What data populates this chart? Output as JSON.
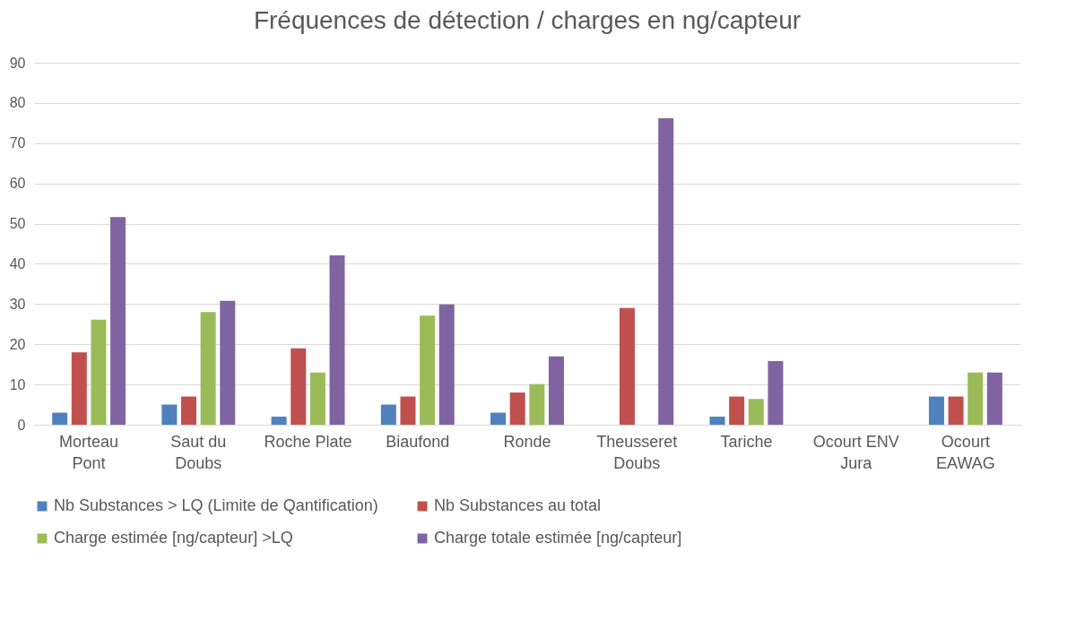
{
  "chart_data": {
    "type": "bar",
    "title": "Fréquences de détection / charges en ng/capteur",
    "categories": [
      "Morteau Pont",
      "Saut du Doubs",
      "Roche Plate",
      "Biaufond",
      "Ronde",
      "Theusseret Doubs",
      "Tariche",
      "Ocourt  ENV Jura",
      "Ocourt EAWAG"
    ],
    "series": [
      {
        "name": "Nb Substances > LQ (Limite de Qantification)",
        "color": "#4f81bd",
        "values": [
          3,
          5,
          2,
          5,
          3,
          null,
          2,
          null,
          7
        ]
      },
      {
        "name": "Nb Substances au total",
        "color": "#c0504d",
        "values": [
          18,
          7,
          19,
          7,
          8,
          29,
          7,
          null,
          7
        ]
      },
      {
        "name": "Charge estimée [ng/capteur] >LQ",
        "color": "#9bbb59",
        "values": [
          26.1,
          28,
          13,
          27.1,
          10.1,
          null,
          6.4,
          null,
          13
        ]
      },
      {
        "name": "Charge totale estimée [ng/capteur]",
        "color": "#8064a2",
        "values": [
          51.6,
          30.8,
          42.1,
          29.9,
          17,
          76.2,
          15.8,
          null,
          13
        ]
      }
    ],
    "ylim": [
      0,
      90
    ],
    "yticks": [
      0,
      10,
      20,
      30,
      40,
      50,
      60,
      70,
      80,
      90
    ],
    "grid": "y",
    "legend": "bottom"
  }
}
